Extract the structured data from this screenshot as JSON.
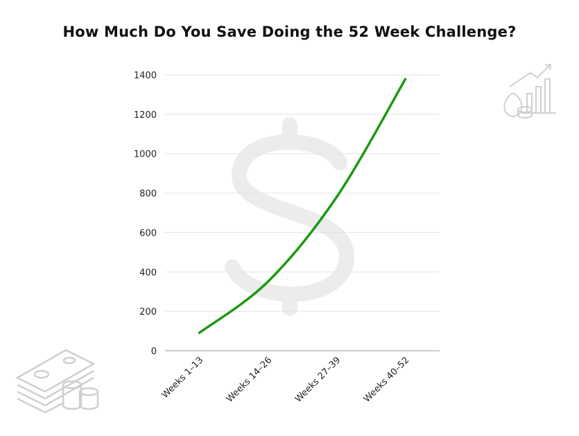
{
  "chart_data": {
    "type": "line",
    "title": "How Much Do You Save Doing the 52 Week Challenge?",
    "xlabel": "",
    "ylabel": "",
    "categories": [
      "Weeks 1–13",
      "Weeks 14–26",
      "Weeks 27–39",
      "Weeks 40–52"
    ],
    "values": [
      91,
      351,
      780,
      1378
    ],
    "ylim": [
      0,
      1400
    ],
    "yticks": [
      0,
      200,
      400,
      600,
      800,
      1000,
      1200,
      1400
    ],
    "grid": true,
    "legend": "none",
    "colors": {
      "line": "#1a9a10",
      "grid": "#e3e3e3",
      "axis": "#bbbbbb",
      "decor": "#cfcfcf",
      "watermark": "#ececec"
    },
    "decorations": [
      "dollar-sign-watermark",
      "money-stack-icon",
      "growth-chart-icon"
    ]
  }
}
